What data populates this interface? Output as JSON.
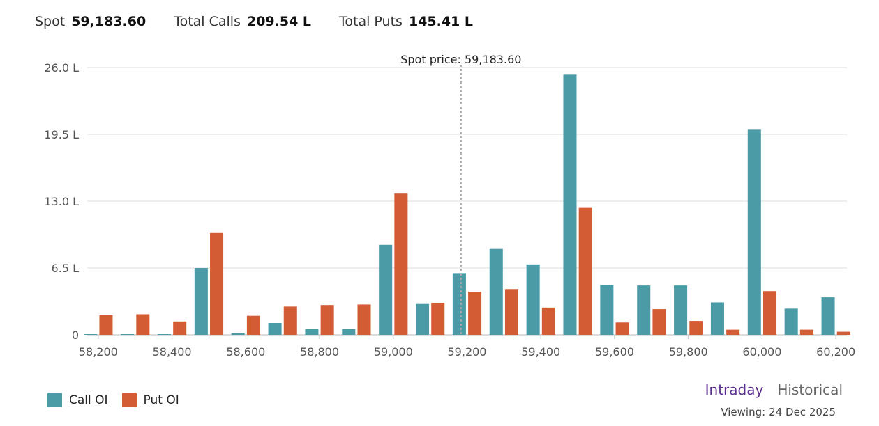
{
  "summary": {
    "spot_label": "Spot",
    "spot_value": "59,183.60",
    "calls_label": "Total Calls",
    "calls_value": "209.54 L",
    "puts_label": "Total Puts",
    "puts_value": "145.41 L"
  },
  "colors": {
    "call": "#4a9ba6",
    "put": "#d45c35",
    "active_tab": "#5b2d90",
    "inactive_tab": "#666666",
    "grid": "#dddddd"
  },
  "legend": {
    "call_label": "Call OI",
    "put_label": "Put OI"
  },
  "view_toggle": {
    "intraday_label": "Intraday",
    "historical_label": "Historical",
    "active": "Intraday"
  },
  "viewing": {
    "label": "Viewing:",
    "date": "24 Dec 2025"
  },
  "chart_data": {
    "type": "bar",
    "categories": [
      58200,
      58300,
      58400,
      58500,
      58600,
      58700,
      58800,
      58900,
      59000,
      59100,
      59200,
      59300,
      59400,
      59500,
      59600,
      59700,
      59800,
      59900,
      60000,
      60100,
      60200
    ],
    "x_tick_labels": [
      "58,200",
      "58,400",
      "58,600",
      "58,800",
      "59,000",
      "59,200",
      "59,400",
      "59,600",
      "59,800",
      "60,000",
      "60,200"
    ],
    "x_tick_values": [
      58200,
      58400,
      58600,
      58800,
      59000,
      59200,
      59400,
      59600,
      59800,
      60000,
      60200
    ],
    "series": [
      {
        "name": "Call OI",
        "values": [
          0.05,
          0.05,
          0.05,
          6.5,
          0.15,
          1.15,
          0.55,
          0.55,
          8.75,
          3.0,
          6.0,
          8.35,
          6.85,
          25.3,
          4.85,
          4.8,
          4.8,
          3.15,
          19.95,
          2.55,
          3.65
        ]
      },
      {
        "name": "Put OI",
        "values": [
          1.9,
          2.0,
          1.3,
          9.9,
          1.85,
          2.75,
          2.9,
          2.95,
          13.8,
          3.1,
          4.2,
          4.45,
          2.65,
          12.35,
          1.2,
          2.5,
          1.35,
          0.5,
          4.25,
          0.5,
          0.3
        ]
      }
    ],
    "y_ticks": [
      0,
      6.5,
      13.0,
      19.5,
      26.0
    ],
    "y_tick_labels": [
      "0",
      "6.5 L",
      "13.0 L",
      "19.5 L",
      "26.0 L"
    ],
    "ylim": [
      0,
      26
    ],
    "xlim": [
      58170,
      60230
    ],
    "grid": true,
    "spot_price": 59183.6,
    "spot_annotation": "Spot price: 59,183.60",
    "xlabel": "",
    "ylabel": "",
    "title": ""
  }
}
